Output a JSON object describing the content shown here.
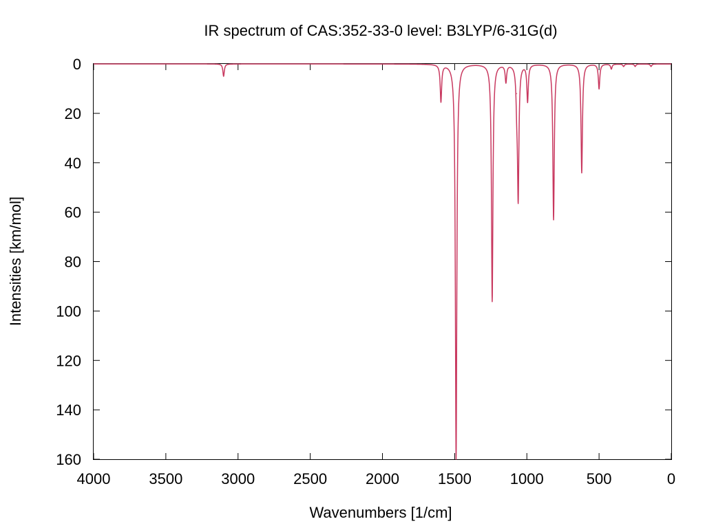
{
  "chart_data": {
    "type": "line",
    "title": "IR spectrum of CAS:352-33-0   level: B3LYP/6-31G(d)",
    "xlabel": "Wavenumbers [1/cm]",
    "ylabel": "Intensities [km/mol]",
    "xlim": [
      4000,
      0
    ],
    "ylim": [
      0,
      160
    ],
    "y_inverted": true,
    "x_ticks": [
      "4000",
      "3500",
      "3000",
      "2500",
      "2000",
      "1500",
      "1000",
      "500",
      "0"
    ],
    "y_ticks": [
      "0",
      "20",
      "40",
      "60",
      "80",
      "100",
      "120",
      "140",
      "160"
    ],
    "grid": false,
    "legend": "none",
    "line_color": "#c8385f",
    "series": [
      {
        "peaks": [
          {
            "x": 3100,
            "y": 5
          },
          {
            "x": 1595,
            "y": 15
          },
          {
            "x": 1490,
            "y": 160
          },
          {
            "x": 1240,
            "y": 96
          },
          {
            "x": 1145,
            "y": 7
          },
          {
            "x": 1070,
            "y": 12
          },
          {
            "x": 1060,
            "y": 53
          },
          {
            "x": 995,
            "y": 15
          },
          {
            "x": 815,
            "y": 63
          },
          {
            "x": 620,
            "y": 44
          },
          {
            "x": 500,
            "y": 10
          },
          {
            "x": 415,
            "y": 2
          },
          {
            "x": 330,
            "y": 1
          },
          {
            "x": 250,
            "y": 1
          },
          {
            "x": 140,
            "y": 1
          }
        ]
      }
    ]
  }
}
